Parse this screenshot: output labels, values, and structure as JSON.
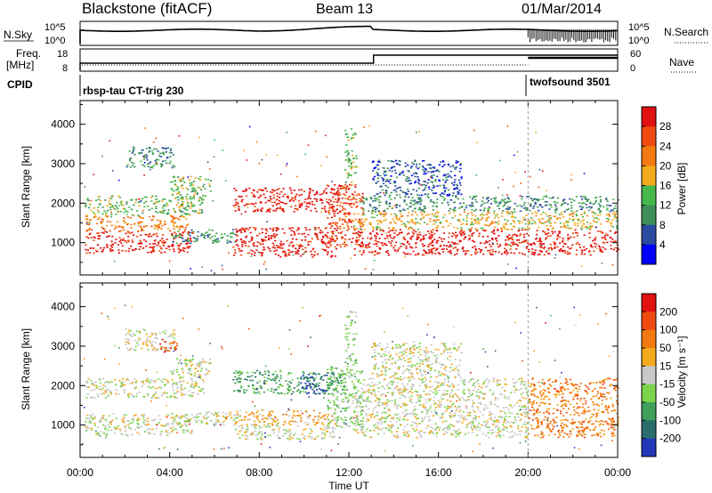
{
  "header": {
    "station": "Blackstone (fitACF)",
    "beam": "Beam 13",
    "date": "01/Mar/2014"
  },
  "strips": {
    "nsky_label": "N.Sky",
    "nsearch_label": "N.Search",
    "nsky_ticks": [
      "10^5",
      "10^0"
    ],
    "nsearch_ticks": [
      "10^5",
      "10^0"
    ],
    "freq_label": "Freq.",
    "freq_unit": "[MHz]",
    "freq_ticks": [
      "18",
      "8"
    ],
    "nave_label": "Nave",
    "nave_ticks": [
      "60",
      "0"
    ],
    "cpid_label": "CPID",
    "cpid_segments": [
      "rbsp-tau CT-trig 230",
      "twofsound 3501"
    ]
  },
  "colors": {
    "power": [
      "#0000ff",
      "#2a4ba0",
      "#3f8f5a",
      "#47b84b",
      "#f2a91b",
      "#f27a10",
      "#f04a10",
      "#e21010"
    ],
    "velocity": [
      "#2238b8",
      "#2a6d6d",
      "#3fa05a",
      "#7bd44b",
      "#c8c8c8",
      "#f2a91b",
      "#f27a10",
      "#f04a10",
      "#e21010"
    ]
  },
  "colorbars": {
    "power": {
      "label": "Power [dB]",
      "ticks": [
        "28",
        "24",
        "20",
        "16",
        "12",
        "8",
        "4"
      ]
    },
    "velocity": {
      "label": "Velocity [m s⁻¹]",
      "ticks": [
        "200",
        "100",
        "50",
        "15",
        "-15",
        "-50",
        "-100",
        "-200"
      ]
    }
  },
  "chart_data": [
    {
      "type": "heatmap",
      "title": "Power",
      "ylabel": "Slant Range [km]",
      "xlabel": "Time UT",
      "xticks": [
        "00:00",
        "04:00",
        "08:00",
        "12:00",
        "16:00",
        "20:00",
        "00:00"
      ],
      "xlim_hours": [
        0,
        24
      ],
      "yticks": [
        1000,
        2000,
        3000,
        4000
      ],
      "ylim": [
        180,
        4600
      ],
      "colorbar_range_db": [
        0,
        30
      ],
      "bands": [
        {
          "t0": 0.2,
          "t1": 5.0,
          "r0": 750,
          "r1": 1300,
          "level": 7
        },
        {
          "t0": 0.2,
          "t1": 4.8,
          "r0": 1300,
          "r1": 1700,
          "level": 5
        },
        {
          "t0": 0.2,
          "t1": 5.5,
          "r0": 1700,
          "r1": 2200,
          "level": 3
        },
        {
          "t0": 2.0,
          "t1": 4.2,
          "r0": 2900,
          "r1": 3450,
          "level": 2
        },
        {
          "t0": 4.0,
          "t1": 5.8,
          "r0": 2150,
          "r1": 2700,
          "level": 3
        },
        {
          "t0": 4.0,
          "t1": 7.0,
          "r0": 1000,
          "r1": 1350,
          "level": 2
        },
        {
          "t0": 6.8,
          "t1": 11.5,
          "r0": 650,
          "r1": 1400,
          "level": 7
        },
        {
          "t0": 6.8,
          "t1": 11.8,
          "r0": 1800,
          "r1": 2400,
          "level": 7
        },
        {
          "t0": 11.0,
          "t1": 12.6,
          "r0": 900,
          "r1": 2500,
          "level": 6
        },
        {
          "t0": 11.8,
          "t1": 12.3,
          "r0": 2500,
          "r1": 3900,
          "level": 3
        },
        {
          "t0": 12.2,
          "t1": 24.0,
          "r0": 700,
          "r1": 1350,
          "level": 7
        },
        {
          "t0": 12.2,
          "t1": 24.0,
          "r0": 1350,
          "r1": 1800,
          "level": 4
        },
        {
          "t0": 12.6,
          "t1": 24.0,
          "r0": 1800,
          "r1": 2200,
          "level": 2
        },
        {
          "t0": 13.0,
          "t1": 17.0,
          "r0": 2200,
          "r1": 3100,
          "level": 1
        }
      ]
    },
    {
      "type": "heatmap",
      "title": "Velocity",
      "ylabel": "Slant Range [km]",
      "xlabel": "Time UT",
      "xticks": [
        "00:00",
        "04:00",
        "08:00",
        "12:00",
        "16:00",
        "20:00",
        "00:00"
      ],
      "xlim_hours": [
        0,
        24
      ],
      "yticks": [
        1000,
        2000,
        3000,
        4000
      ],
      "ylim": [
        180,
        4600
      ],
      "colorbar_range_ms": [
        -200,
        200
      ],
      "bands": [
        {
          "t0": 0.2,
          "t1": 5.0,
          "r0": 750,
          "r1": 1300,
          "level": 4
        },
        {
          "t0": 0.2,
          "t1": 5.5,
          "r0": 1700,
          "r1": 2200,
          "level": 4
        },
        {
          "t0": 2.0,
          "t1": 4.2,
          "r0": 2900,
          "r1": 3450,
          "level": 4
        },
        {
          "t0": 3.5,
          "t1": 4.3,
          "r0": 2850,
          "r1": 3200,
          "level": 7
        },
        {
          "t0": 4.0,
          "t1": 5.8,
          "r0": 2150,
          "r1": 2700,
          "level": 4
        },
        {
          "t0": 4.0,
          "t1": 7.0,
          "r0": 1000,
          "r1": 1350,
          "level": 4
        },
        {
          "t0": 6.8,
          "t1": 11.5,
          "r0": 1000,
          "r1": 1400,
          "level": 5
        },
        {
          "t0": 6.8,
          "t1": 11.5,
          "r0": 650,
          "r1": 1000,
          "level": 4
        },
        {
          "t0": 6.8,
          "t1": 11.8,
          "r0": 1800,
          "r1": 2400,
          "level": 2
        },
        {
          "t0": 9.8,
          "t1": 11.0,
          "r0": 1800,
          "r1": 2300,
          "level": 0
        },
        {
          "t0": 11.0,
          "t1": 12.6,
          "r0": 900,
          "r1": 2500,
          "level": 3
        },
        {
          "t0": 11.8,
          "t1": 12.3,
          "r0": 2500,
          "r1": 3900,
          "level": 3
        },
        {
          "t0": 12.2,
          "t1": 20.0,
          "r0": 700,
          "r1": 1800,
          "level": 4
        },
        {
          "t0": 12.6,
          "t1": 20.0,
          "r0": 1800,
          "r1": 2200,
          "level": 4
        },
        {
          "t0": 20.0,
          "t1": 24.0,
          "r0": 700,
          "r1": 2200,
          "level": 6
        },
        {
          "t0": 13.0,
          "t1": 17.0,
          "r0": 2200,
          "r1": 3100,
          "level": 4
        }
      ]
    }
  ]
}
